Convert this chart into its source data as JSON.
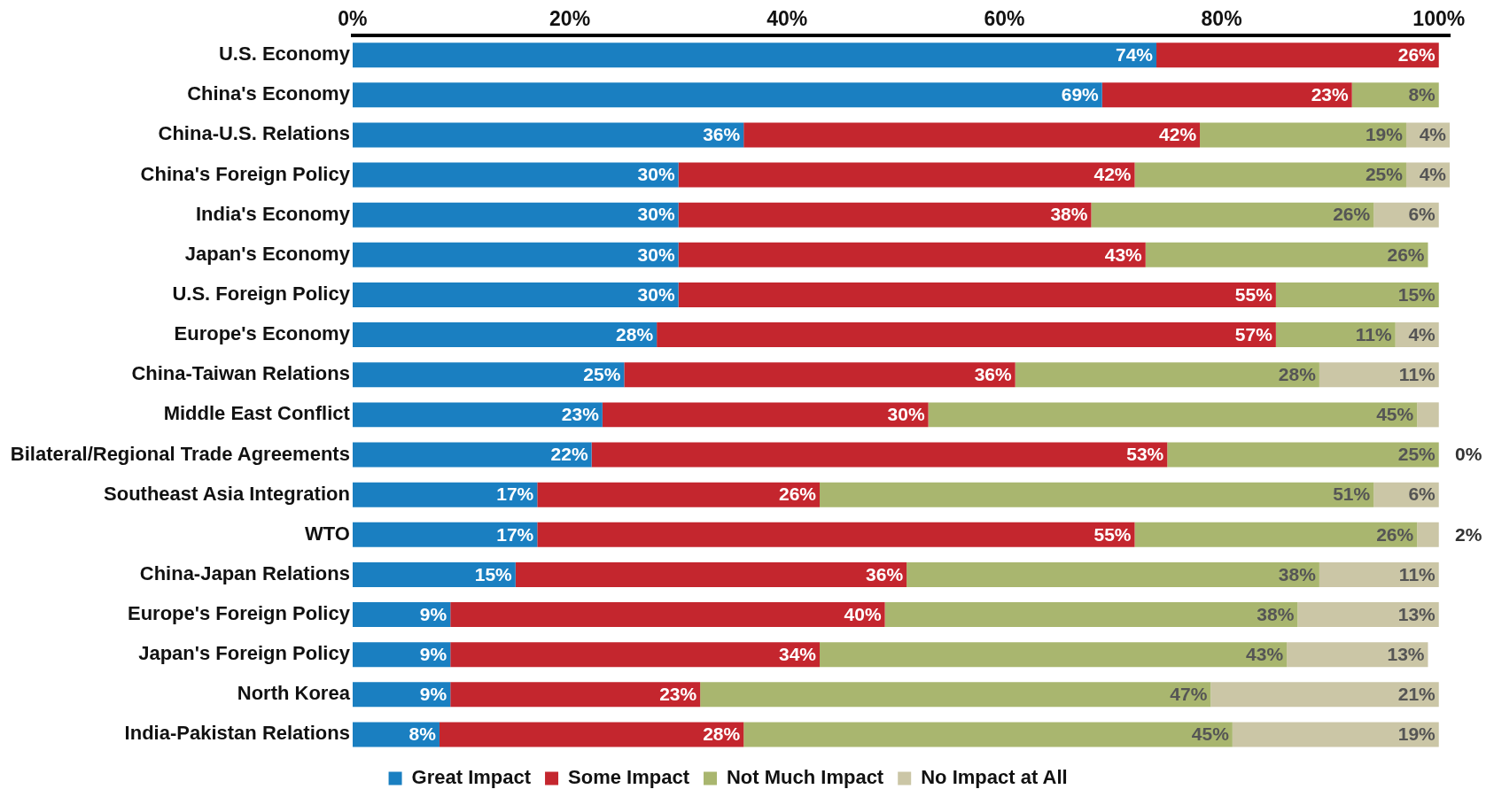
{
  "chart_data": {
    "type": "bar",
    "orientation": "horizontal",
    "stacked": true,
    "categories": [
      "U.S. Economy",
      "China's Economy",
      "China-U.S. Relations",
      "China's Foreign Policy",
      "India's Economy",
      "Japan's Economy",
      "U.S. Foreign Policy",
      "Europe's Economy",
      "China-Taiwan Relations",
      "Middle East Conflict",
      "Bilateral/Regional Trade Agreements",
      "Southeast Asia Integration",
      "WTO",
      "China-Japan Relations",
      "Europe's Foreign Policy",
      "Japan's Foreign Policy",
      "North Korea",
      "India-Pakistan Relations"
    ],
    "series": [
      {
        "name": "Great Impact",
        "color": "#1a7fc1",
        "values": [
          74,
          69,
          36,
          30,
          30,
          30,
          30,
          28,
          25,
          23,
          22,
          17,
          17,
          15,
          9,
          9,
          9,
          8
        ],
        "value_labels": [
          "74%",
          "69%",
          "36%",
          "30%",
          "30%",
          "30%",
          "30%",
          "28%",
          "25%",
          "23%",
          "22%",
          "17%",
          "17%",
          "15%",
          "9%",
          "9%",
          "9%",
          "8%"
        ]
      },
      {
        "name": "Some Impact",
        "color": "#c4262e",
        "values": [
          26,
          23,
          42,
          42,
          38,
          43,
          55,
          57,
          36,
          30,
          53,
          26,
          55,
          36,
          40,
          34,
          23,
          28
        ],
        "value_labels": [
          "26%",
          "23%",
          "42%",
          "42%",
          "38%",
          "43%",
          "55%",
          "57%",
          "36%",
          "30%",
          "53%",
          "26%",
          "55%",
          "36%",
          "40%",
          "34%",
          "23%",
          "28%"
        ]
      },
      {
        "name": "Not Much Impact",
        "color": "#a9b66f",
        "values": [
          null,
          8,
          19,
          25,
          26,
          26,
          15,
          11,
          28,
          45,
          25,
          51,
          26,
          38,
          38,
          43,
          47,
          45
        ],
        "value_labels": [
          null,
          "8%",
          "19%",
          "25%",
          "26%",
          "26%",
          "15%",
          "11%",
          "28%",
          "45%",
          "25%",
          "51%",
          "26%",
          "38%",
          "38%",
          "43%",
          "47%",
          "45%"
        ]
      },
      {
        "name": "No Impact at All",
        "color": "#cbc6a6",
        "values": [
          null,
          null,
          4,
          4,
          6,
          null,
          null,
          4,
          11,
          2,
          0,
          6,
          2,
          11,
          13,
          13,
          21,
          19
        ],
        "value_labels": [
          null,
          null,
          "4%",
          "4%",
          "6%",
          null,
          null,
          "4%",
          "11%",
          null,
          "0%",
          "6%",
          "2%",
          "11%",
          "13%",
          "13%",
          "21%",
          "19%"
        ]
      }
    ],
    "xlim": [
      0,
      101
    ],
    "xticks": [
      {
        "value": 0,
        "label": "0%"
      },
      {
        "value": 20,
        "label": "20%"
      },
      {
        "value": 40,
        "label": "40%"
      },
      {
        "value": 60,
        "label": "60%"
      },
      {
        "value": 80,
        "label": "80%"
      },
      {
        "value": 100,
        "label": "100%"
      }
    ],
    "grid": false,
    "legend": "bottom"
  }
}
